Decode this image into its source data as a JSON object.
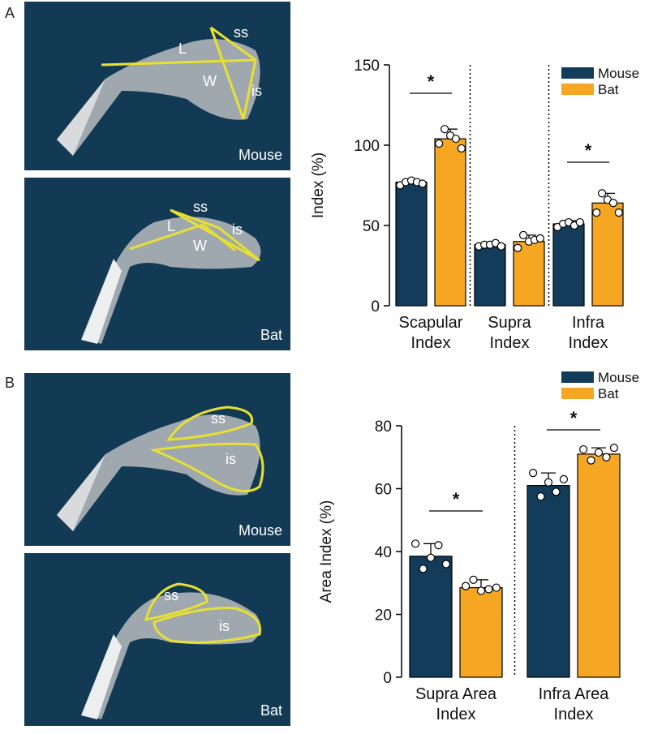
{
  "panels": {
    "a_letter": "A",
    "b_letter": "B"
  },
  "images": [
    {
      "caption": "Mouse",
      "labels": [
        "L",
        "ss",
        "W",
        "is"
      ]
    },
    {
      "caption": "Bat",
      "labels": [
        "L",
        "ss",
        "is",
        "W"
      ]
    },
    {
      "caption": "Mouse",
      "labels": [
        "ss",
        "is"
      ]
    },
    {
      "caption": "Bat",
      "labels": [
        "ss",
        "is"
      ]
    }
  ],
  "colors": {
    "mouse": "#123c5a",
    "bat": "#f5a623",
    "image_bg": "#123a55",
    "overlay": "#e8e030"
  },
  "chart_data": [
    {
      "type": "bar",
      "ylabel": "Index (%)",
      "ylim": [
        0,
        150
      ],
      "yticks": [
        0,
        50,
        100,
        150
      ],
      "categories": [
        [
          "Scapular",
          "Index"
        ],
        [
          "Supra",
          "Index"
        ],
        [
          "Infra",
          "Index"
        ]
      ],
      "series": [
        {
          "name": "Mouse",
          "values": [
            77,
            38,
            51
          ],
          "errors": [
            2,
            1,
            2
          ],
          "points": [
            [
              75,
              77,
              78,
              77,
              76
            ],
            [
              37,
              38,
              38,
              39,
              37
            ],
            [
              49,
              51,
              52,
              50,
              52
            ]
          ]
        },
        {
          "name": "Bat",
          "values": [
            104,
            40,
            64
          ],
          "errors": [
            6,
            4,
            6
          ],
          "points": [
            [
              101,
              110,
              106,
              104,
              98
            ],
            [
              36,
              44,
              40,
              41,
              42
            ],
            [
              58,
              70,
              66,
              64,
              58
            ]
          ]
        }
      ],
      "significance": [
        "*",
        "",
        "*"
      ],
      "legend": "top-right",
      "dividers": true
    },
    {
      "type": "bar",
      "ylabel": "Area Index (%)",
      "ylim": [
        0,
        80
      ],
      "yticks": [
        0,
        20,
        40,
        60,
        80
      ],
      "categories": [
        [
          "Supra Area",
          "Index"
        ],
        [
          "Infra Area",
          "Index"
        ]
      ],
      "series": [
        {
          "name": "Mouse",
          "values": [
            38.5,
            61
          ],
          "errors": [
            4,
            4
          ],
          "points": [
            [
              42.5,
              34.5,
              38,
              42,
              36
            ],
            [
              65,
              57.5,
              62,
              59,
              63
            ]
          ]
        },
        {
          "name": "Bat",
          "values": [
            28.5,
            71
          ],
          "errors": [
            2.5,
            2
          ],
          "points": [
            [
              29,
              31,
              27.5,
              28,
              28.5
            ],
            [
              72.5,
              69,
              71.5,
              70,
              73
            ]
          ]
        }
      ],
      "significance": [
        "*",
        "*"
      ],
      "legend": "top-right",
      "dividers": true
    }
  ]
}
